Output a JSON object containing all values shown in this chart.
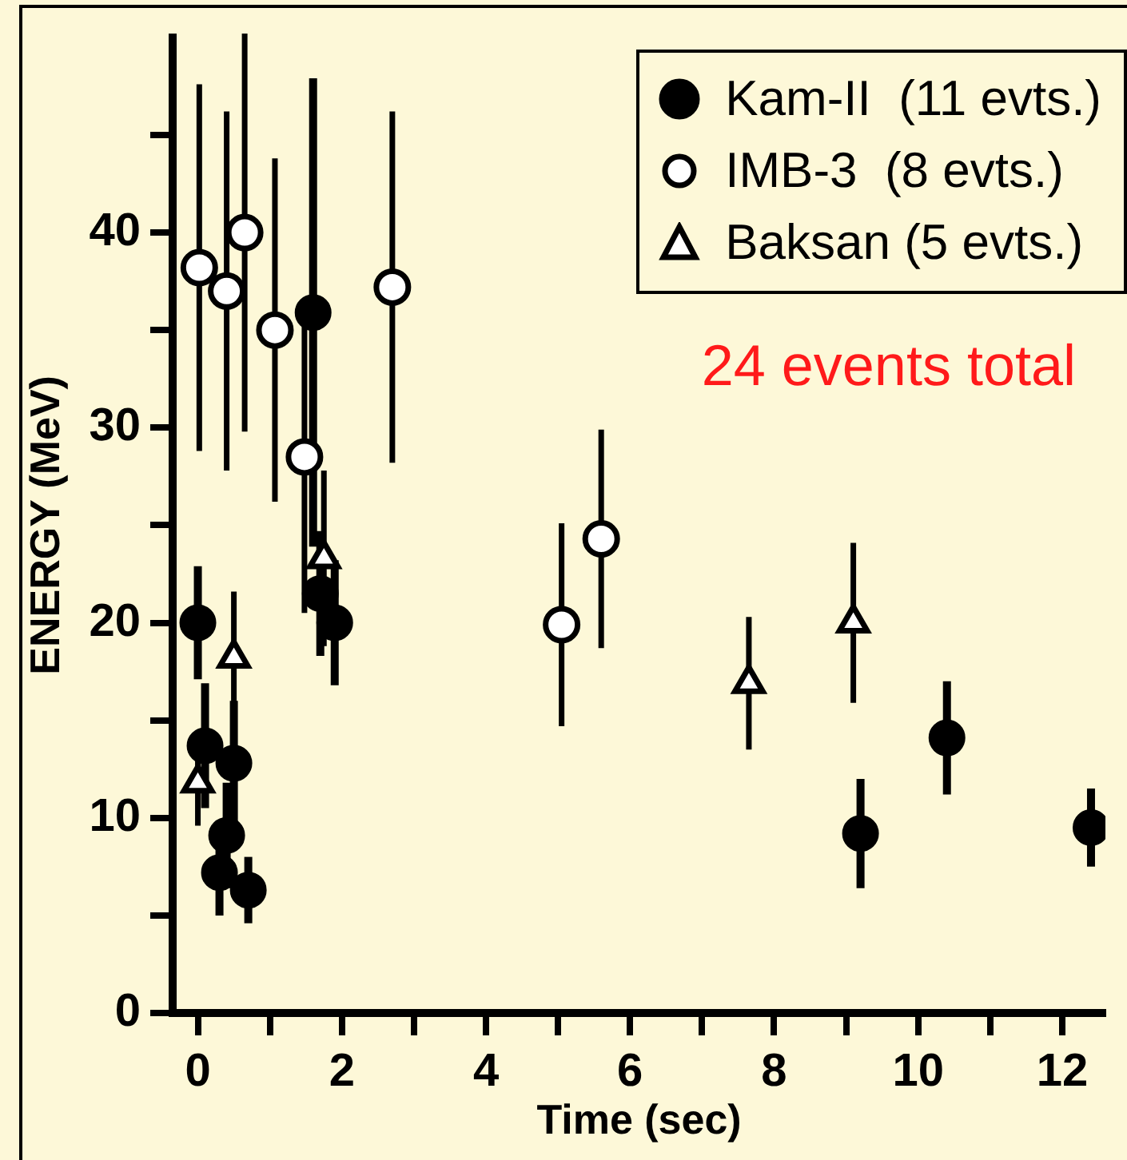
{
  "chart_data": {
    "type": "scatter",
    "xlabel": "Time (sec)",
    "ylabel": "ENERGY (MeV)",
    "xlim": [
      -0.35,
      12.6
    ],
    "ylim": [
      0,
      50
    ],
    "xticks": [
      0,
      {
        "value": 1,
        "label": null
      },
      2,
      {
        "value": 3,
        "label": null
      },
      4,
      {
        "value": 5,
        "label": null
      },
      6,
      {
        "value": 7,
        "label": null
      },
      8,
      {
        "value": 9,
        "label": null
      },
      10,
      {
        "value": 11,
        "label": null
      },
      12
    ],
    "yticks": [
      0,
      {
        "value": 5,
        "label": null
      },
      10,
      {
        "value": 15,
        "label": null
      },
      20,
      {
        "value": 25,
        "label": null
      },
      30,
      {
        "value": 35,
        "label": null
      },
      40,
      {
        "value": 45,
        "label": null
      }
    ],
    "grid": false,
    "legend": "top right",
    "annotations": [
      "24 events total"
    ],
    "series": [
      {
        "name": "Kam-II  (11 evts.)",
        "color": "#000000",
        "marker": "circle",
        "x": [
          0,
          0.1,
          0.3,
          0.4,
          0.5,
          0.7,
          1.6,
          1.7,
          1.9,
          9.2,
          10.4,
          12.4
        ],
        "values": [
          20,
          13.7,
          7.2,
          9.1,
          12.8,
          6.3,
          35.9,
          21.5,
          20,
          9.2,
          14.1,
          9.5
        ],
        "errors": [
          2.9,
          3.2,
          2.2,
          2.7,
          3.2,
          1.7,
          12,
          3.2,
          3.2,
          2.8,
          2.9,
          2
        ]
      },
      {
        "name": "IMB-3  (8 evts.)",
        "color": "#ffffff",
        "marker": "circle",
        "x": [
          0.02,
          0.4,
          0.65,
          1.07,
          1.48,
          2.7,
          5.05,
          5.6
        ],
        "values": [
          38.2,
          37,
          40,
          35,
          28.5,
          37.2,
          19.9,
          24.3
        ],
        "errors": [
          9.4,
          9.2,
          10.2,
          8.8,
          8,
          9,
          5.2,
          5.6
        ]
      },
      {
        "name": "Baksan (5 evts.)",
        "color": "#ffffff",
        "marker": "triangle",
        "x": [
          0,
          0.5,
          1.75,
          7.65,
          9.1
        ],
        "values": [
          11.8,
          18.2,
          23.3,
          16.9,
          20
        ],
        "errors": [
          2.2,
          3.4,
          4.5,
          3.4,
          4.1
        ]
      }
    ]
  }
}
